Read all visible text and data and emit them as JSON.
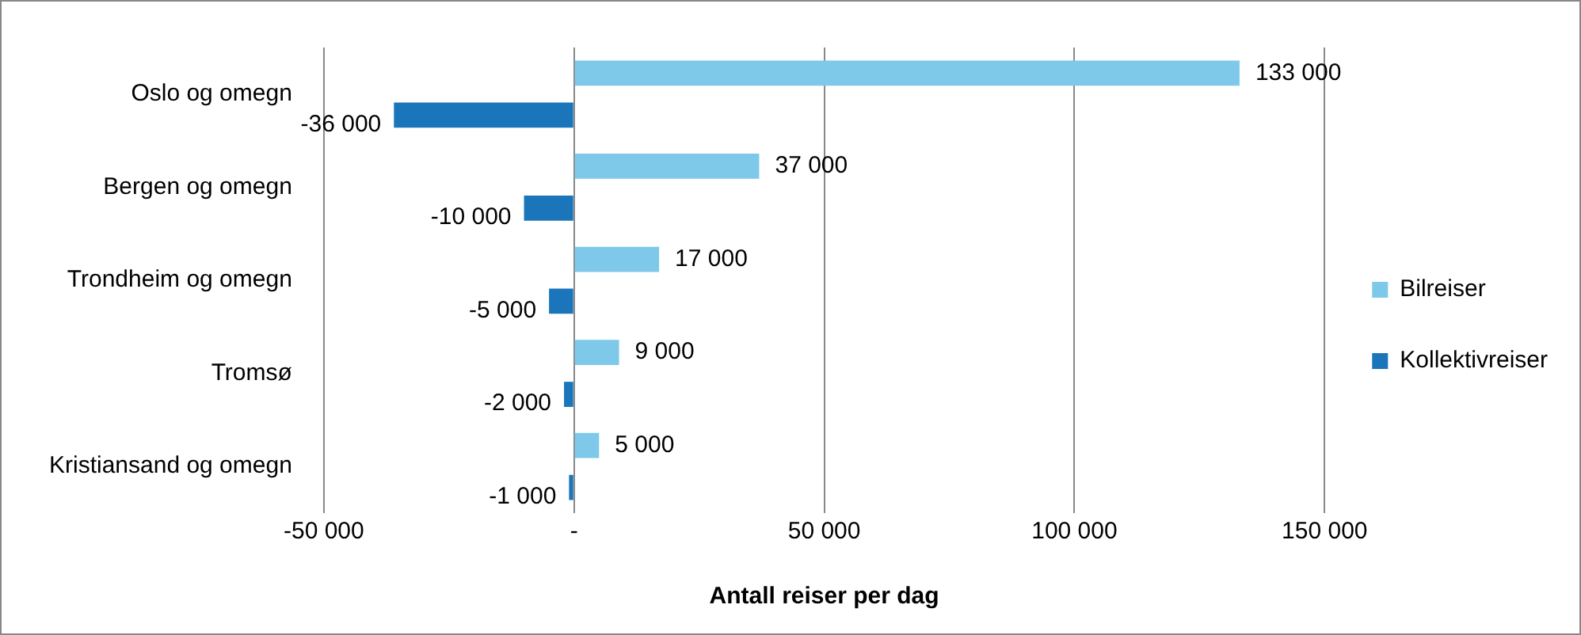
{
  "chart_data": {
    "type": "bar",
    "orientation": "horizontal",
    "xlabel": "Antall reiser per dag",
    "categories": [
      "Oslo og omegn",
      "Bergen og omegn",
      "Trondheim og omegn",
      "Tromsø",
      "Kristiansand og omegn"
    ],
    "series": [
      {
        "name": "Bilreiser",
        "color": "#7ec8e9",
        "values": [
          133000,
          37000,
          17000,
          9000,
          5000
        ],
        "value_labels": [
          "133 000",
          "37 000",
          "17 000",
          "9 000",
          "5 000"
        ]
      },
      {
        "name": "Kollektivreiser",
        "color": "#1b75bb",
        "values": [
          -36000,
          -10000,
          -5000,
          -2000,
          -1000
        ],
        "value_labels": [
          "-36 000",
          "-10 000",
          "-5 000",
          "-2 000",
          "-1 000"
        ]
      }
    ],
    "xlim": [
      -50000,
      150000
    ],
    "xticks": [
      {
        "value": -50000,
        "label": "-50 000"
      },
      {
        "value": 0,
        "label": "-"
      },
      {
        "value": 50000,
        "label": "50 000"
      },
      {
        "value": 100000,
        "label": "100 000"
      },
      {
        "value": 150000,
        "label": "150 000"
      }
    ],
    "grid": "x",
    "legend": "right"
  }
}
